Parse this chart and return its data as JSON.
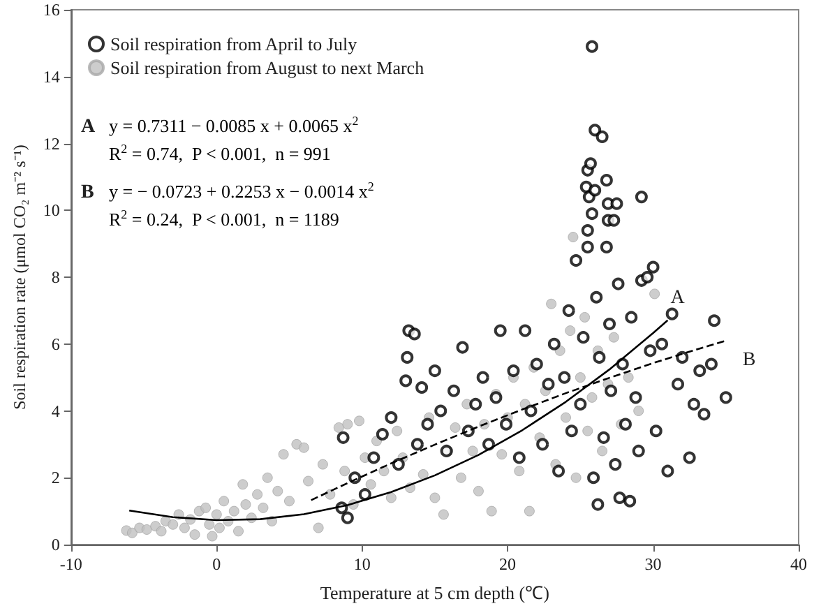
{
  "chart_data": {
    "type": "scatter",
    "xlabel": "Temperature at 5 cm depth (℃)",
    "ylabel": "Soil respiration rate (μmol CO₂ m⁻² s⁻¹)",
    "xlim": [
      -10,
      40
    ],
    "xticks": [
      -10,
      0,
      10,
      20,
      30,
      40
    ],
    "ylim": [
      0,
      16
    ],
    "yticks": [
      0,
      2,
      4,
      6,
      8,
      10,
      12,
      14,
      16
    ],
    "grid": false,
    "legend": "top left",
    "series": [
      {
        "name": "Soil respiration from April to July",
        "color": "#000000",
        "marker": "open_circle",
        "x": [
          8.6,
          8.7,
          9.0,
          9.5,
          10.2,
          10.8,
          11.4,
          12.0,
          12.5,
          13.0,
          13.1,
          13.2,
          13.6,
          13.8,
          14.1,
          14.5,
          15.0,
          15.4,
          15.8,
          16.3,
          16.9,
          17.3,
          17.8,
          18.3,
          18.7,
          19.2,
          19.5,
          19.9,
          20.4,
          20.8,
          21.2,
          21.6,
          22.0,
          22.4,
          22.8,
          23.2,
          23.5,
          23.9,
          24.2,
          24.4,
          24.7,
          25.0,
          25.2,
          25.4,
          25.5,
          25.5,
          25.5,
          25.6,
          25.7,
          25.8,
          25.8,
          25.9,
          26.0,
          26.0,
          26.1,
          26.2,
          26.3,
          26.5,
          26.6,
          26.8,
          26.8,
          26.9,
          26.9,
          27.0,
          27.1,
          27.3,
          27.4,
          27.5,
          27.6,
          27.7,
          27.9,
          28.1,
          28.4,
          28.5,
          28.8,
          29.0,
          29.2,
          29.2,
          29.6,
          29.8,
          30.0,
          30.2,
          30.6,
          31.0,
          31.3,
          31.7,
          32.0,
          32.5,
          32.8,
          33.2,
          33.5,
          34.0,
          34.2,
          35.0
        ],
        "values": [
          1.1,
          3.2,
          0.8,
          2.0,
          1.5,
          2.6,
          3.3,
          3.8,
          2.4,
          4.9,
          5.6,
          6.4,
          6.3,
          3.0,
          4.7,
          3.6,
          5.2,
          4.0,
          2.8,
          4.6,
          5.9,
          3.4,
          4.2,
          5.0,
          3.0,
          4.4,
          6.4,
          3.6,
          5.2,
          2.6,
          6.4,
          4.0,
          5.4,
          3.0,
          4.8,
          6.0,
          2.2,
          5.0,
          7.0,
          3.4,
          8.5,
          4.2,
          6.2,
          10.7,
          11.2,
          9.4,
          8.9,
          10.4,
          11.4,
          14.9,
          9.9,
          2.0,
          12.4,
          10.6,
          7.4,
          1.2,
          5.6,
          12.2,
          3.2,
          10.9,
          8.9,
          10.2,
          9.7,
          6.6,
          4.6,
          9.7,
          2.4,
          10.2,
          7.8,
          1.4,
          5.4,
          3.6,
          1.3,
          6.8,
          4.4,
          2.8,
          10.4,
          7.9,
          8.0,
          5.8,
          8.3,
          3.4,
          6.0,
          2.2,
          6.9,
          4.8,
          5.6,
          2.6,
          4.2,
          5.2,
          3.9,
          5.4,
          6.7,
          4.4
        ]
      },
      {
        "name": "Soil respiration from August to next March",
        "color": "#c0c0c0",
        "marker": "circle",
        "x": [
          -6.2,
          -5.8,
          -5.3,
          -4.8,
          -4.2,
          -3.8,
          -3.5,
          -3.0,
          -2.6,
          -2.2,
          -1.8,
          -1.5,
          -1.2,
          -0.75,
          -0.5,
          -0.3,
          0,
          0.2,
          0.5,
          0.8,
          1.2,
          1.5,
          1.8,
          2.0,
          2.4,
          2.8,
          3.2,
          3.5,
          3.8,
          4.2,
          4.6,
          5.0,
          5.5,
          6.0,
          6.3,
          7.0,
          7.3,
          7.8,
          8.4,
          8.8,
          9.0,
          9.4,
          9.8,
          10.2,
          10.6,
          11.0,
          11.5,
          12.0,
          12.4,
          12.8,
          13.3,
          13.8,
          14.2,
          14.6,
          15.0,
          15.6,
          15.9,
          16.4,
          16.8,
          17.2,
          17.6,
          18.0,
          18.4,
          18.9,
          19.2,
          19.6,
          20.0,
          20.4,
          20.8,
          21.2,
          21.5,
          21.8,
          22.2,
          22.6,
          23.0,
          23.3,
          23.6,
          24.0,
          24.3,
          24.5,
          24.7,
          25.0,
          25.3,
          25.5,
          25.8,
          26.2,
          26.5,
          26.9,
          27.3,
          27.8,
          28.3,
          29.0,
          30.1
        ],
        "values": [
          0.42,
          0.35,
          0.5,
          0.45,
          0.55,
          0.4,
          0.7,
          0.6,
          0.9,
          0.5,
          0.75,
          0.3,
          1.0,
          1.1,
          0.6,
          0.25,
          0.9,
          0.5,
          1.3,
          0.7,
          1.0,
          0.4,
          1.8,
          1.2,
          0.8,
          1.5,
          1.1,
          2.0,
          0.7,
          1.6,
          2.7,
          1.3,
          3.0,
          2.9,
          1.9,
          0.5,
          2.4,
          1.5,
          3.5,
          2.2,
          3.6,
          1.2,
          3.7,
          2.6,
          1.8,
          3.1,
          2.2,
          1.4,
          3.4,
          2.6,
          1.7,
          3.0,
          2.1,
          3.8,
          1.4,
          0.9,
          2.8,
          3.5,
          2.0,
          4.2,
          2.8,
          1.6,
          3.6,
          1.0,
          4.5,
          2.7,
          3.8,
          5.0,
          2.2,
          4.2,
          1.0,
          5.3,
          3.2,
          4.6,
          7.2,
          2.4,
          5.8,
          3.8,
          6.4,
          9.2,
          2.0,
          5.0,
          6.8,
          3.4,
          4.4,
          5.8,
          2.8,
          4.8,
          6.2,
          3.6,
          5.0,
          4.0,
          7.5
        ]
      },
      {
        "type": "line",
        "name": "A",
        "color": "#000000",
        "marker": "none",
        "line_style": "solid",
        "x": [
          -6,
          -3,
          0,
          3,
          6,
          9,
          12,
          15,
          18,
          21,
          24,
          27,
          30,
          31
        ],
        "values": [
          1.02,
          0.82,
          0.73,
          0.76,
          0.91,
          1.18,
          1.57,
          2.07,
          2.68,
          3.42,
          4.27,
          5.24,
          6.33,
          6.71
        ]
      },
      {
        "type": "line",
        "name": "B",
        "color": "#000000",
        "marker": "none",
        "line_style": "dashed",
        "x": [
          6.5,
          9,
          12,
          15,
          18,
          21,
          24,
          27,
          30,
          33,
          35
        ],
        "values": [
          1.33,
          1.84,
          2.43,
          2.99,
          3.53,
          4.04,
          4.53,
          4.99,
          5.43,
          5.84,
          6.1
        ]
      }
    ],
    "annotations": [
      "A",
      "y = 0.7311 − 0.0085 x + 0.0065 x$^{2}$",
      "R$^{2}$ = 0.74,  P < 0.001,  n = 991",
      "B",
      "y = − 0.0723 + 0.2253 x − 0.0014 x$^{2}$",
      "R$^{2}$ = 0.24,  P < 0.001,  n = 1189"
    ]
  }
}
